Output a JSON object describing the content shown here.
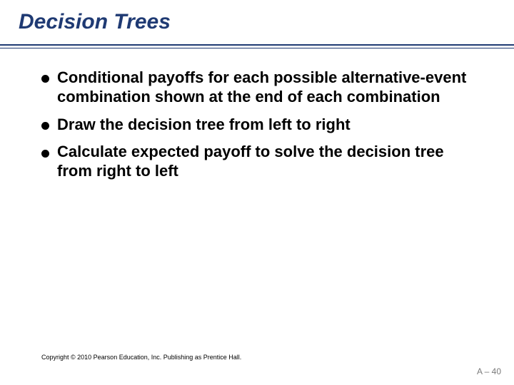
{
  "title": {
    "text": "Decision Trees",
    "color": "#1f3a73",
    "fontsize": 30
  },
  "rule": {
    "color": "#1f3a73"
  },
  "bullets": {
    "marker_color": "#000000",
    "text_color": "#000000",
    "fontsize": 22,
    "line_height": 1.22,
    "items": [
      "Conditional payoffs for each possible alternative-event combination shown at the end of each combination",
      "Draw the decision tree from left to right",
      "Calculate expected payoff to solve the decision tree from right to left"
    ]
  },
  "footer": {
    "copyright": "Copyright © 2010 Pearson Education, Inc. Publishing as Prentice Hall.",
    "copyright_fontsize": 9,
    "copyright_color": "#000000",
    "page_label": "A – 40",
    "page_fontsize": 12,
    "page_color": "#7a7a7a"
  }
}
